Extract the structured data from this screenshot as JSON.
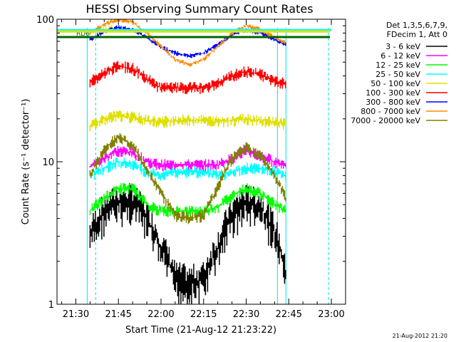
{
  "chart_data": {
    "type": "line",
    "title": "HESSI Observing Summary Count Rates",
    "xlabel": "Start Time (21-Aug-12 21:23:22)",
    "ylabel": "Count Rate (s⁻¹ detector⁻¹)",
    "yscale": "log",
    "ylim": [
      1,
      100
    ],
    "y_ticks": [
      {
        "value": 1,
        "label": "1"
      },
      {
        "value": 10,
        "label": "10"
      },
      {
        "value": 100,
        "label": "100"
      }
    ],
    "xlim": [
      "21:23:22",
      "23:05:00"
    ],
    "x_ticks": [
      "21:30",
      "21:45",
      "22:00",
      "22:15",
      "22:30",
      "22:45",
      "23:00"
    ],
    "legend": {
      "header": [
        "Det 1,3,5,6,7,9,",
        "FDecim 1, Att 0"
      ],
      "placement": "right"
    },
    "series": [
      {
        "name": "3 - 6 keV",
        "color": "#000000",
        "x": [
          "21:35",
          "21:40",
          "21:45",
          "21:50",
          "21:55",
          "22:00",
          "22:05",
          "22:10",
          "22:15",
          "22:20",
          "22:25",
          "22:30",
          "22:35",
          "22:40",
          "22:44"
        ],
        "y": [
          3.0,
          4.5,
          5.2,
          5.3,
          4.0,
          2.5,
          1.5,
          1.4,
          1.5,
          2.5,
          4.2,
          5.2,
          4.8,
          3.2,
          1.5
        ]
      },
      {
        "name": "6 - 12 keV",
        "color": "#ff00ff",
        "x": [
          "21:35",
          "21:40",
          "21:45",
          "21:50",
          "21:55",
          "22:00",
          "22:05",
          "22:10",
          "22:15",
          "22:20",
          "22:25",
          "22:30",
          "22:35",
          "22:40",
          "22:44"
        ],
        "y": [
          9.2,
          10.5,
          12.0,
          11.5,
          10.0,
          9.5,
          9.5,
          9.5,
          9.5,
          9.5,
          10.5,
          12.0,
          11.0,
          10.0,
          9.5
        ]
      },
      {
        "name": "12 - 25 keV",
        "color": "#00ff00",
        "x": [
          "21:35",
          "21:40",
          "21:45",
          "21:50",
          "21:55",
          "22:00",
          "22:05",
          "22:10",
          "22:15",
          "22:20",
          "22:25",
          "22:30",
          "22:35",
          "22:40",
          "22:44"
        ],
        "y": [
          4.5,
          5.5,
          6.5,
          6.5,
          5.0,
          4.5,
          4.5,
          4.5,
          4.5,
          4.8,
          5.8,
          6.5,
          6.0,
          5.0,
          4.5
        ]
      },
      {
        "name": "25 - 50 keV",
        "color": "#00ffff",
        "x": [
          "21:35",
          "21:40",
          "21:45",
          "21:50",
          "21:55",
          "22:00",
          "22:05",
          "22:10",
          "22:15",
          "22:20",
          "22:25",
          "22:30",
          "22:35",
          "22:40",
          "22:44"
        ],
        "y": [
          8.0,
          9.0,
          10.0,
          9.5,
          8.5,
          8.0,
          8.5,
          8.5,
          8.5,
          8.0,
          8.5,
          9.0,
          9.0,
          8.5,
          8.0
        ]
      },
      {
        "name": "50 - 100 keV",
        "color": "#e0e000",
        "x": [
          "21:35",
          "21:40",
          "21:45",
          "21:50",
          "21:55",
          "22:00",
          "22:05",
          "22:10",
          "22:15",
          "22:20",
          "22:25",
          "22:30",
          "22:35",
          "22:40",
          "22:44"
        ],
        "y": [
          18.0,
          20.0,
          21.0,
          20.5,
          19.5,
          19.0,
          19.5,
          19.5,
          19.5,
          19.0,
          19.5,
          20.0,
          19.5,
          19.0,
          18.5
        ]
      },
      {
        "name": "100 - 300 keV",
        "color": "#ff0000",
        "x": [
          "21:35",
          "21:40",
          "21:45",
          "21:50",
          "21:55",
          "22:00",
          "22:05",
          "22:10",
          "22:15",
          "22:20",
          "22:25",
          "22:30",
          "22:35",
          "22:40",
          "22:44"
        ],
        "y": [
          36.0,
          42.0,
          47.0,
          45.0,
          38.0,
          33.0,
          33.0,
          33.0,
          33.0,
          35.0,
          40.0,
          43.0,
          41.0,
          37.0,
          35.0
        ]
      },
      {
        "name": "300 - 800 keV",
        "color": "#0000ff",
        "x": [
          "21:35",
          "21:40",
          "21:45",
          "21:50",
          "21:55",
          "22:00",
          "22:05",
          "22:10",
          "22:15",
          "22:20",
          "22:25",
          "22:30",
          "22:35",
          "22:40",
          "22:44"
        ],
        "y": [
          72.0,
          82.0,
          88.0,
          84.0,
          74.0,
          64.0,
          58.0,
          55.0,
          58.0,
          66.0,
          78.0,
          84.0,
          80.0,
          72.0,
          66.0
        ]
      },
      {
        "name": "800 - 7000 keV",
        "color": "#ff8c00",
        "x": [
          "21:35",
          "21:40",
          "21:45",
          "21:50",
          "21:55",
          "22:00",
          "22:05",
          "22:10",
          "22:15",
          "22:20",
          "22:25",
          "22:30",
          "22:35",
          "22:40",
          "22:44"
        ],
        "y": [
          80.0,
          92.0,
          100.0,
          95.0,
          80.0,
          64.0,
          52.0,
          48.0,
          52.0,
          64.0,
          80.0,
          90.0,
          85.0,
          74.0,
          68.0
        ]
      },
      {
        "name": "7000 - 20000 keV",
        "color": "#808000",
        "x": [
          "21:35",
          "21:40",
          "21:45",
          "21:50",
          "21:55",
          "22:00",
          "22:05",
          "22:10",
          "22:15",
          "22:20",
          "22:25",
          "22:30",
          "22:35",
          "22:40",
          "22:44"
        ],
        "y": [
          8.0,
          12.0,
          15.0,
          13.0,
          8.5,
          6.0,
          4.2,
          4.0,
          4.2,
          6.5,
          10.5,
          12.5,
          11.0,
          8.0,
          5.5
        ]
      }
    ],
    "annotations": [
      {
        "label": "RD6",
        "color": "#006400",
        "level": 75
      },
      {
        "label": "RD5",
        "color": "#e0e000",
        "level": 82
      }
    ],
    "timestamp": "21-Aug-2012 21:20"
  }
}
